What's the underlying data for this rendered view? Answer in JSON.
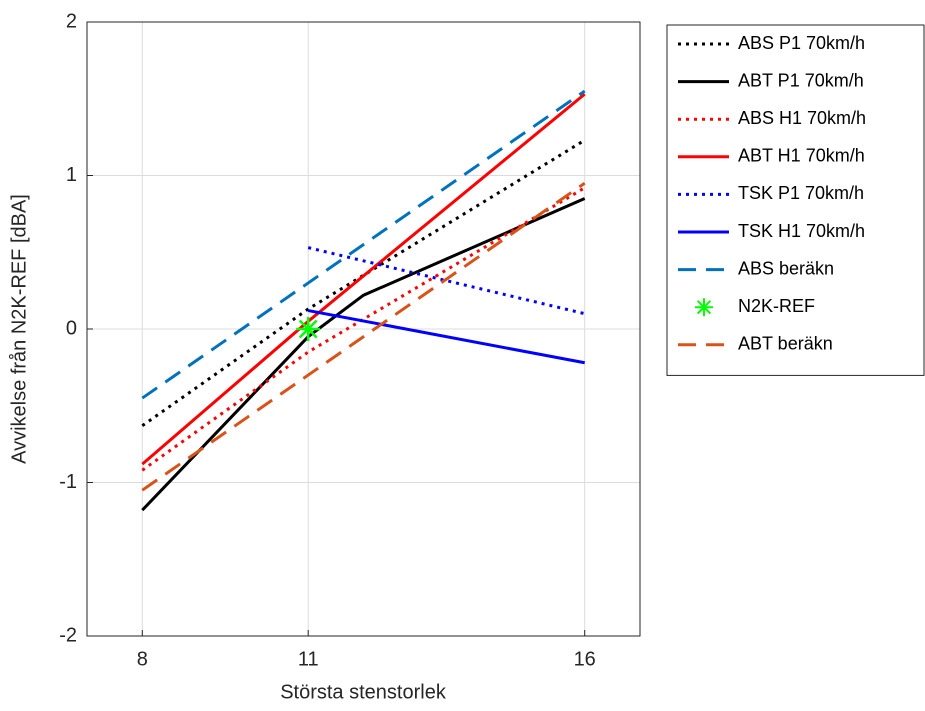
{
  "chart_data": {
    "type": "line",
    "xlabel": "Största stenstorlek",
    "ylabel": "Avvikelse från N2K-REF [dBA]",
    "xlim": [
      7,
      17
    ],
    "xticks": [
      8,
      11,
      16
    ],
    "ylim": [
      -2,
      2
    ],
    "yticks": [
      -2,
      -1,
      0,
      1,
      2
    ],
    "grid": true,
    "legend": "outside-right",
    "series": [
      {
        "name": "ABS P1 70km/h",
        "color": "#000000",
        "linestyle": "dotted",
        "x": [
          8,
          11,
          16
        ],
        "values": [
          -0.63,
          0.13,
          1.23
        ]
      },
      {
        "name": "ABT P1 70km/h",
        "color": "#000000",
        "linestyle": "solid",
        "x": [
          8,
          11,
          12,
          16
        ],
        "values": [
          -1.18,
          -0.05,
          0.22,
          0.85
        ]
      },
      {
        "name": "ABS H1 70km/h",
        "color": "#ff0000",
        "linestyle": "dotted",
        "x": [
          8,
          11,
          16
        ],
        "values": [
          -0.92,
          -0.15,
          0.92
        ]
      },
      {
        "name": "ABT H1 70km/h",
        "color": "#ff0000",
        "linestyle": "solid",
        "x": [
          8,
          11,
          16
        ],
        "values": [
          -0.88,
          0.05,
          1.53
        ]
      },
      {
        "name": "TSK P1 70km/h",
        "color": "#0000ff",
        "linestyle": "dotted",
        "x": [
          11,
          16
        ],
        "values": [
          0.53,
          0.1
        ]
      },
      {
        "name": "TSK H1 70km/h",
        "color": "#0000ff",
        "linestyle": "solid",
        "x": [
          11,
          16
        ],
        "values": [
          0.12,
          -0.22
        ]
      },
      {
        "name": "ABS beräkn",
        "color": "#0072bd",
        "linestyle": "dashed",
        "x": [
          8,
          16
        ],
        "values": [
          -0.45,
          1.55
        ]
      },
      {
        "name": "N2K-REF",
        "color": "#00ff00",
        "linestyle": "none",
        "marker": "*",
        "x": [
          11
        ],
        "values": [
          0
        ]
      },
      {
        "name": "ABT beräkn",
        "color": "#d95319",
        "linestyle": "dashed",
        "x": [
          8,
          16
        ],
        "values": [
          -1.05,
          0.95
        ]
      }
    ]
  }
}
